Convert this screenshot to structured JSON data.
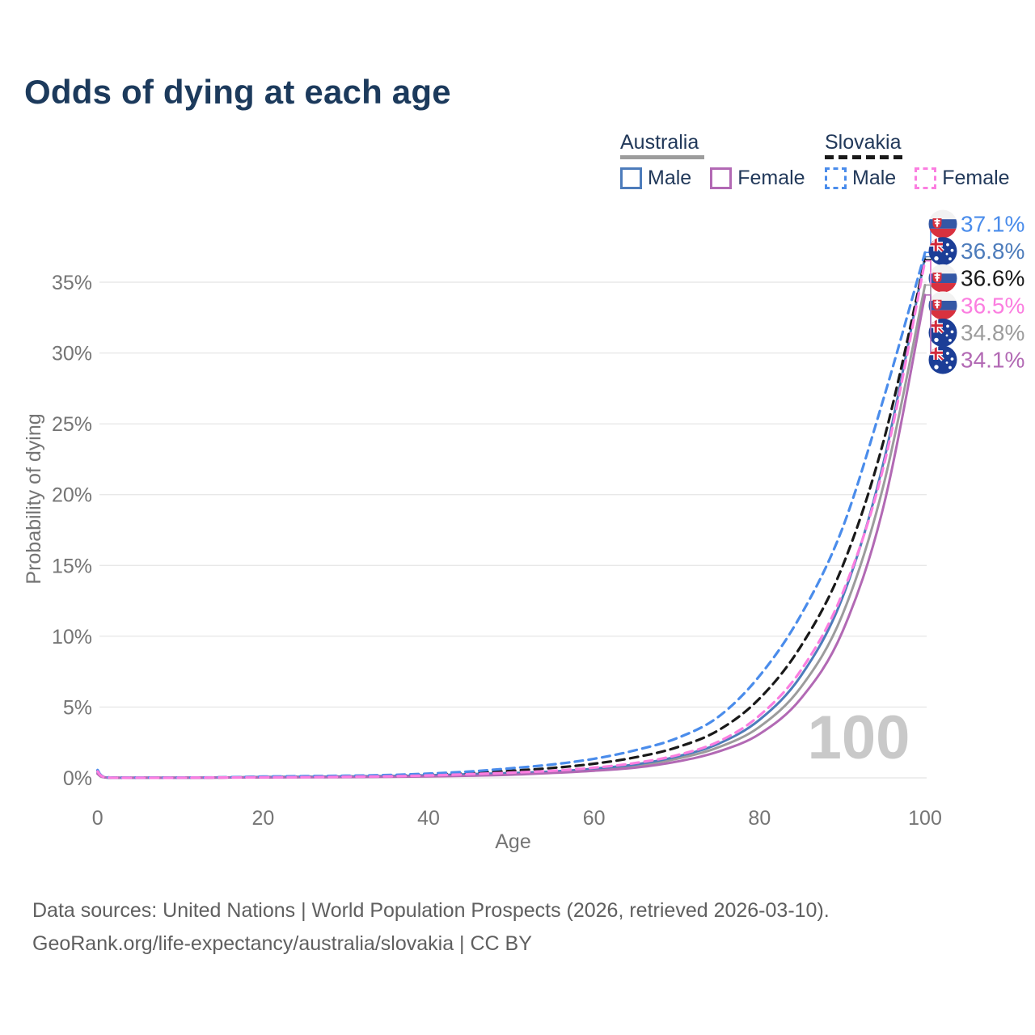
{
  "title": "Odds of dying at each age",
  "legend": {
    "groups": [
      {
        "name": "Australia",
        "line_style": "solid",
        "underline_color": "#9c9c9c",
        "items": [
          {
            "label": "Male",
            "color": "#4d7cbb",
            "dashed": false
          },
          {
            "label": "Female",
            "color": "#b269b4",
            "dashed": false
          }
        ]
      },
      {
        "name": "Slovakia",
        "line_style": "dashed",
        "underline_color": "#191919",
        "items": [
          {
            "label": "Male",
            "color": "#4a8ceb",
            "dashed": true
          },
          {
            "label": "Female",
            "color": "#fb7ee0",
            "dashed": true
          }
        ]
      }
    ]
  },
  "chart_data": {
    "type": "line",
    "title": "Odds of dying at each age",
    "xlabel": "Age",
    "ylabel": "Probability of dying",
    "xlim": [
      0,
      100
    ],
    "ylim": [
      0,
      38.5
    ],
    "xticks": [
      "0",
      "20",
      "40",
      "60",
      "80",
      "100"
    ],
    "xtick_values": [
      0,
      20,
      40,
      60,
      80,
      100
    ],
    "yticks": [
      "0%",
      "5%",
      "10%",
      "15%",
      "20%",
      "25%",
      "30%",
      "35%"
    ],
    "ytick_values": [
      0,
      5,
      10,
      15,
      20,
      25,
      30,
      35
    ],
    "grid": true,
    "legend_position": "top-right",
    "watermark": "100",
    "x": [
      0,
      1,
      5,
      10,
      15,
      20,
      25,
      30,
      35,
      40,
      45,
      50,
      55,
      60,
      65,
      70,
      75,
      80,
      85,
      90,
      95,
      100
    ],
    "series": [
      {
        "id": "au_both",
        "name": "Australia",
        "country": "australia",
        "color": "#9c9c9c",
        "dashed": false,
        "end_label": "34.8%",
        "values": [
          0.3,
          0.03,
          0.01,
          0.01,
          0.02,
          0.05,
          0.06,
          0.08,
          0.1,
          0.14,
          0.2,
          0.28,
          0.4,
          0.58,
          0.85,
          1.35,
          2.15,
          3.6,
          6.4,
          11.5,
          20.7,
          34.8
        ]
      },
      {
        "id": "au_male",
        "name": "Australia Male",
        "country": "australia",
        "color": "#4d7cbb",
        "dashed": false,
        "end_label": "36.8%",
        "values": [
          0.35,
          0.03,
          0.01,
          0.01,
          0.03,
          0.06,
          0.08,
          0.1,
          0.13,
          0.18,
          0.26,
          0.34,
          0.45,
          0.65,
          0.95,
          1.5,
          2.4,
          4.1,
          7.2,
          12.7,
          22.3,
          36.8
        ]
      },
      {
        "id": "au_female",
        "name": "Australia Female",
        "country": "australia",
        "color": "#b269b4",
        "dashed": false,
        "end_label": "34.1%",
        "values": [
          0.28,
          0.02,
          0.01,
          0.01,
          0.02,
          0.03,
          0.04,
          0.05,
          0.07,
          0.1,
          0.15,
          0.22,
          0.35,
          0.5,
          0.72,
          1.15,
          1.85,
          3.1,
          5.6,
          10.3,
          19.2,
          34.1
        ]
      },
      {
        "id": "sk_both",
        "name": "Slovakia",
        "country": "slovakia",
        "color": "#191919",
        "dashed": true,
        "end_label": "36.6%",
        "values": [
          0.5,
          0.04,
          0.02,
          0.02,
          0.03,
          0.07,
          0.09,
          0.12,
          0.16,
          0.24,
          0.35,
          0.5,
          0.7,
          1.0,
          1.45,
          2.15,
          3.35,
          5.6,
          9.3,
          14.9,
          23.8,
          36.6
        ]
      },
      {
        "id": "sk_male",
        "name": "Slovakia Male",
        "country": "slovakia",
        "color": "#4a8ceb",
        "dashed": true,
        "end_label": "37.1%",
        "values": [
          0.55,
          0.04,
          0.02,
          0.02,
          0.04,
          0.09,
          0.12,
          0.15,
          0.2,
          0.3,
          0.45,
          0.68,
          0.95,
          1.35,
          1.95,
          2.8,
          4.3,
          7.2,
          11.5,
          17.6,
          26.8,
          37.1
        ]
      },
      {
        "id": "sk_female",
        "name": "Slovakia Female",
        "country": "slovakia",
        "color": "#fb7ee0",
        "dashed": true,
        "end_label": "36.5%",
        "values": [
          0.45,
          0.03,
          0.01,
          0.01,
          0.02,
          0.04,
          0.05,
          0.08,
          0.11,
          0.17,
          0.26,
          0.37,
          0.5,
          0.72,
          1.05,
          1.6,
          2.55,
          4.4,
          7.6,
          13.0,
          22.0,
          36.5
        ]
      }
    ]
  },
  "footer": {
    "line1": "Data sources: United Nations | World Population Prospects (2026, retrieved 2026-03-10).",
    "line2": "GeoRank.org/life-expectancy/australia/slovakia | CC BY"
  },
  "colors": {
    "title_text": "#1c3a5c",
    "legend_text": "#22395a",
    "axis_text": "#757575",
    "gridline": "#e8e8e8",
    "watermark": "#c9c9c9",
    "footer_text": "#5f5f5f"
  }
}
